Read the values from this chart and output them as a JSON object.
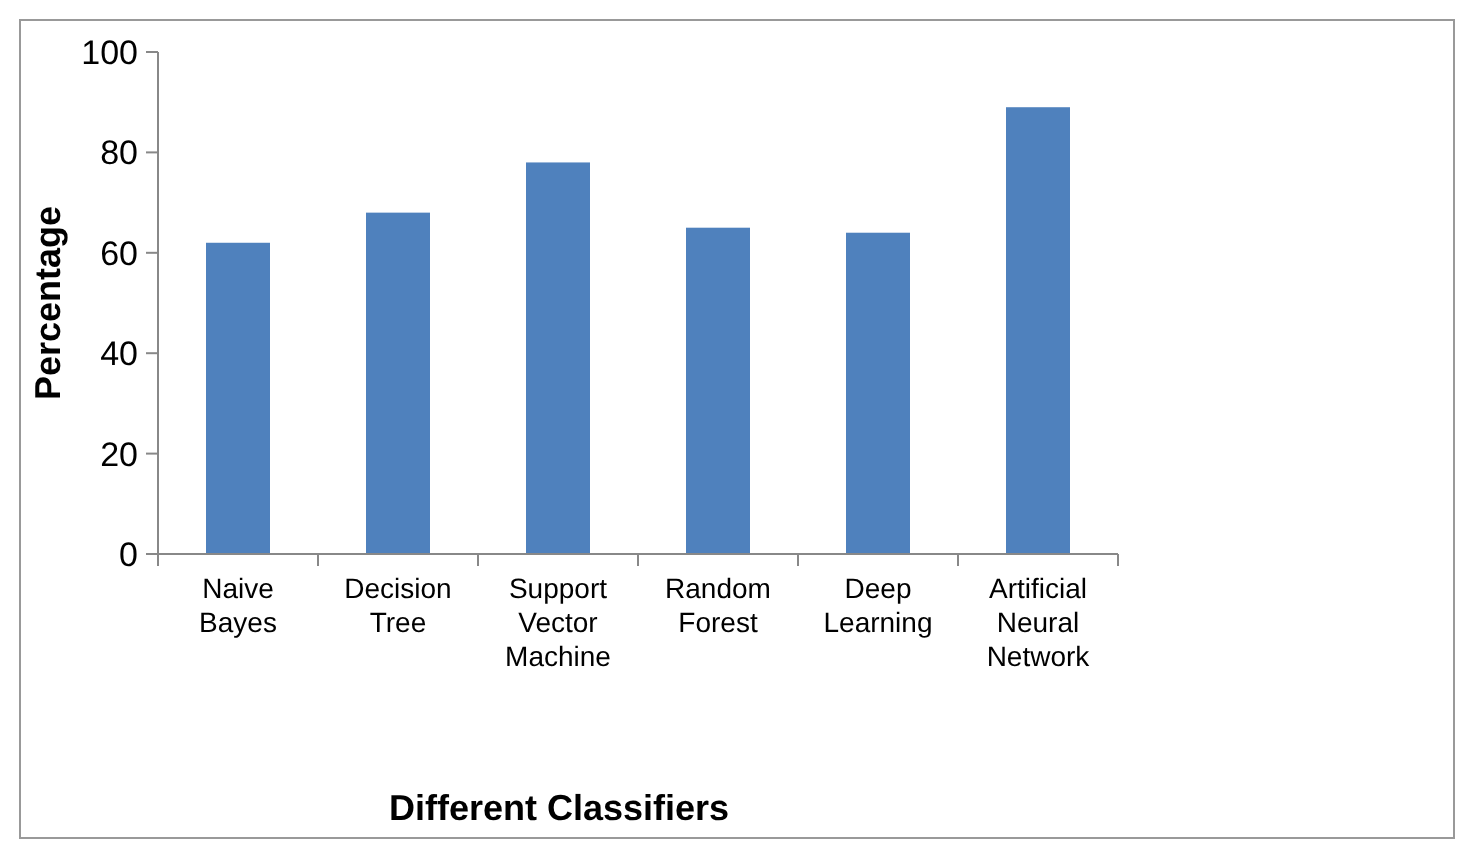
{
  "chart_data": {
    "type": "bar",
    "xlabel": "Different Classifiers",
    "ylabel": "Percentage",
    "categories": [
      "Naive Bayes",
      "Decision Tree",
      "Support Vector Machine",
      "Random Forest",
      "Deep Learning",
      "Artificial Neural Network"
    ],
    "values": [
      62,
      68,
      78,
      65,
      64,
      89
    ],
    "color": "#4f81bd",
    "ylim": [
      0,
      100
    ],
    "yticks": [
      0,
      20,
      40,
      60,
      80,
      100
    ],
    "grid": false
  }
}
